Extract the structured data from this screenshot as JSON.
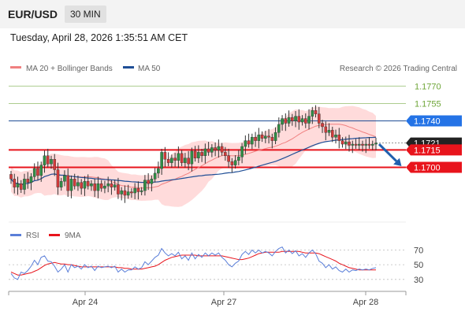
{
  "header": {
    "symbol": "EUR/USD",
    "timeframe": "30 MIN"
  },
  "datetime": "Tuesday, April 28, 2026 1:35:51 AM CET",
  "copyright": "Research © 2026 Trading Central",
  "colors": {
    "resistance": "#e8141c",
    "target": "#6ea537",
    "ma50": "#1f4e96",
    "ma20": "#f08080",
    "band": "#ffcfcf",
    "rsi": "#5b7fd9",
    "rsi_ma": "#e8141c",
    "current": "#222222"
  },
  "chart_data": [
    {
      "type": "candlestick",
      "legend": [
        "MA 20 + Bollinger Bands",
        "MA 50"
      ],
      "legend_placement": "top-left",
      "x_ticks": [
        "Apr 24",
        "Apr 27",
        "Apr 28"
      ],
      "ylim": [
        1.1657,
        1.1779
      ],
      "levels": [
        {
          "label": "1.1770",
          "value": 1.177,
          "kind": "target"
        },
        {
          "label": "1.1755",
          "value": 1.1755,
          "kind": "target"
        },
        {
          "label": "1.1740",
          "value": 1.174,
          "kind": "pivot"
        },
        {
          "label": "1.1721",
          "value": 1.1721,
          "kind": "current"
        },
        {
          "label": "1.1715",
          "value": 1.1715,
          "kind": "resistance"
        },
        {
          "label": "1.1700",
          "value": 1.17,
          "kind": "resistance"
        }
      ],
      "forecast_arrow": {
        "from": 1.172,
        "to": 1.1702
      },
      "closes": [
        1.169,
        1.1683,
        1.1686,
        1.1681,
        1.169,
        1.1687,
        1.1692,
        1.1699,
        1.1693,
        1.1702,
        1.171,
        1.1703,
        1.1707,
        1.1698,
        1.1683,
        1.1688,
        1.1693,
        1.168,
        1.169,
        1.1684,
        1.1687,
        1.1682,
        1.1688,
        1.1684,
        1.1686,
        1.168,
        1.1686,
        1.1682,
        1.1684,
        1.1686,
        1.1683,
        1.1685,
        1.1677,
        1.168,
        1.1676,
        1.1679,
        1.1678,
        1.1682,
        1.1679,
        1.168,
        1.1689,
        1.1686,
        1.169,
        1.1695,
        1.1699,
        1.1713,
        1.1707,
        1.1704,
        1.1708,
        1.1706,
        1.1712,
        1.1704,
        1.1708,
        1.1703,
        1.1714,
        1.1708,
        1.1713,
        1.171,
        1.1716,
        1.1713,
        1.1717,
        1.1715,
        1.1718,
        1.1713,
        1.171,
        1.1705,
        1.1702,
        1.1706,
        1.1709,
        1.1718,
        1.1723,
        1.172,
        1.1726,
        1.1723,
        1.1728,
        1.1725,
        1.1727,
        1.1726,
        1.1723,
        1.173,
        1.1737,
        1.1742,
        1.1738,
        1.1743,
        1.174,
        1.1744,
        1.1739,
        1.1742,
        1.1738,
        1.1744,
        1.1749,
        1.1746,
        1.1738,
        1.1735,
        1.173,
        1.1732,
        1.1726,
        1.1728,
        1.1723,
        1.172,
        1.1722,
        1.1719,
        1.172,
        1.1719,
        1.172,
        1.1719,
        1.172,
        1.1719,
        1.172,
        1.1721
      ]
    },
    {
      "type": "line",
      "legend": [
        "RSI",
        "9MA"
      ],
      "legend_placement": "top-left",
      "y_ticks": [
        70,
        50,
        30
      ],
      "ylim": [
        18,
        78
      ],
      "rsi": [
        38,
        32,
        30,
        40,
        38,
        42,
        48,
        56,
        50,
        60,
        62,
        55,
        54,
        48,
        40,
        44,
        50,
        40,
        50,
        46,
        48,
        44,
        50,
        46,
        48,
        42,
        48,
        46,
        47,
        48,
        46,
        48,
        40,
        44,
        40,
        43,
        43,
        47,
        44,
        46,
        54,
        50,
        55,
        60,
        63,
        72,
        66,
        62,
        65,
        62,
        67,
        58,
        62,
        56,
        66,
        58,
        64,
        60,
        66,
        62,
        66,
        63,
        66,
        60,
        56,
        50,
        47,
        52,
        55,
        64,
        68,
        64,
        70,
        66,
        70,
        66,
        68,
        66,
        62,
        68,
        72,
        74,
        66,
        70,
        65,
        69,
        62,
        65,
        60,
        66,
        70,
        65,
        55,
        52,
        46,
        50,
        44,
        47,
        42,
        40,
        44,
        40,
        43,
        42,
        44,
        43,
        44,
        43,
        45,
        46
      ],
      "ma9": [
        40,
        38,
        36,
        36,
        37,
        38,
        39,
        41,
        43,
        46,
        49,
        51,
        52,
        53,
        52,
        51,
        51,
        50,
        50,
        49,
        48,
        47,
        47,
        47,
        47,
        47,
        47,
        47,
        47,
        47,
        47,
        47,
        46,
        46,
        45,
        45,
        44,
        44,
        44,
        44,
        45,
        46,
        47,
        48,
        50,
        53,
        56,
        58,
        60,
        61,
        62,
        63,
        63,
        63,
        63,
        63,
        62,
        62,
        62,
        62,
        62,
        62,
        62,
        62,
        61,
        60,
        59,
        58,
        57,
        57,
        58,
        59,
        61,
        63,
        65,
        66,
        67,
        67,
        67,
        67,
        67,
        68,
        68,
        68,
        68,
        68,
        68,
        67,
        66,
        66,
        66,
        66,
        65,
        63,
        61,
        59,
        57,
        55,
        52,
        50,
        48,
        46,
        45,
        44,
        43,
        43,
        43,
        43,
        43,
        43
      ]
    }
  ]
}
